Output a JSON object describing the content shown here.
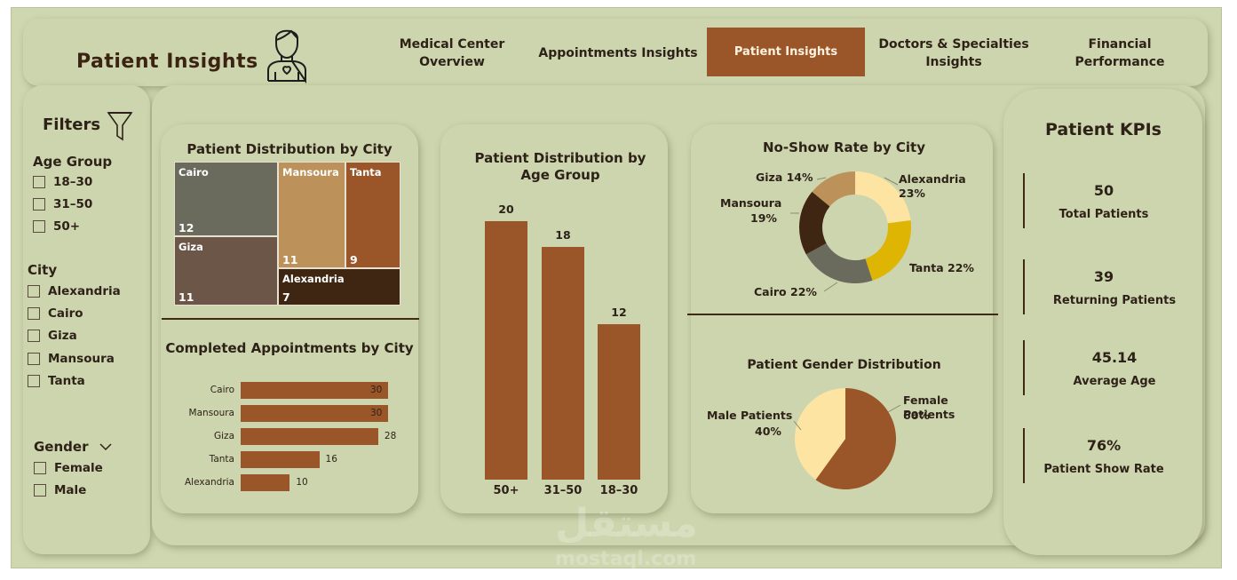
{
  "header": {
    "page_title": "Patient  Insights",
    "nav": [
      {
        "label": "Medical Center Overview",
        "line1": "Medical Center",
        "line2": "Overview"
      },
      {
        "label": "Appointments Insights"
      },
      {
        "label": "Patient Insights"
      },
      {
        "label": "Doctors & Specialties Insights",
        "line1": "Doctors & Specialties",
        "line2": "Insights"
      },
      {
        "label": "Financial Performance"
      }
    ],
    "active_nav": "Patient Insights"
  },
  "filters": {
    "title": "Filters",
    "age_group": {
      "label": "Age Group",
      "options": [
        "18–30",
        "31–50",
        "50+"
      ]
    },
    "city": {
      "label": "City",
      "options": [
        "Alexandria",
        "Cairo",
        "Giza",
        "Mansoura",
        "Tanta"
      ]
    },
    "gender": {
      "label": "Gender",
      "options": [
        "Female",
        "Male"
      ]
    }
  },
  "colors": {
    "background": "#cfd7b1",
    "brown": "#9a5629",
    "dark_brown": "#3f2613",
    "tan": "#bd925a",
    "gray": "#6a6b5c",
    "taupe": "#6b5648",
    "light_yellow": "#fde4a3",
    "mustard": "#dfb503"
  },
  "chart_data": [
    {
      "type": "treemap",
      "title": "Patient Distribution by City",
      "categories": [
        "Cairo",
        "Giza",
        "Mansoura",
        "Tanta",
        "Alexandria"
      ],
      "values": [
        12,
        11,
        11,
        9,
        7
      ]
    },
    {
      "type": "bar",
      "orientation": "horizontal",
      "title": "Completed Appointments by City",
      "categories": [
        "Cairo",
        "Mansoura",
        "Giza",
        "Tanta",
        "Alexandria"
      ],
      "values": [
        30,
        30,
        28,
        16,
        10
      ]
    },
    {
      "type": "bar",
      "title": "Patient Distribution by Age Group",
      "categories": [
        "50+",
        "31–50",
        "18–30"
      ],
      "values": [
        20,
        18,
        12
      ],
      "ylim": [
        0,
        20
      ]
    },
    {
      "type": "pie",
      "subtype": "donut",
      "title": "No-Show Rate by City",
      "categories": [
        "Alexandria",
        "Tanta",
        "Cairo",
        "Mansoura",
        "Giza"
      ],
      "values": [
        23,
        22,
        22,
        19,
        14
      ],
      "labels": [
        "Alexandria 23%",
        "Tanta 22%",
        "Cairo 22%",
        "Mansoura 19%",
        "Giza 14%"
      ]
    },
    {
      "type": "pie",
      "title": "Patient Gender Distribution",
      "categories": [
        "Female Patients",
        "Male Patients"
      ],
      "values": [
        60,
        40
      ],
      "labels": [
        "60%",
        "40%"
      ]
    }
  ],
  "kpis": {
    "title": "Patient  KPIs",
    "items": [
      {
        "value": "50",
        "label": "Total Patients"
      },
      {
        "value": "39",
        "label": "Returning Patients"
      },
      {
        "value": "45.14",
        "label": "Average Age"
      },
      {
        "value": "76%",
        "label": "Patient Show Rate"
      }
    ]
  },
  "watermark": {
    "arabic": "مستقل",
    "latin": "mostaql.com"
  }
}
